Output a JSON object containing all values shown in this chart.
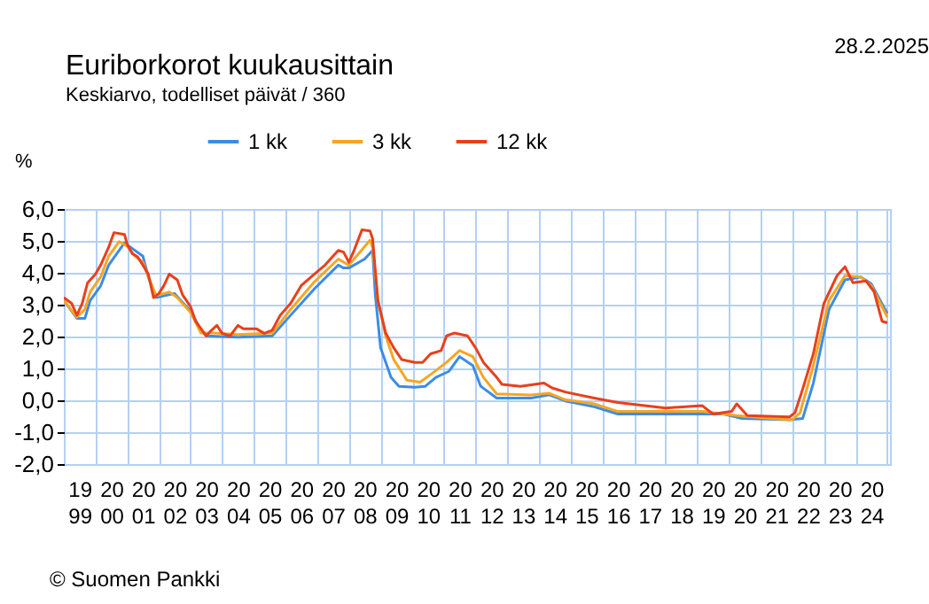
{
  "chart_data": {
    "type": "line",
    "title": "Euriborkorot kuukausittain",
    "subtitle": "Keskiarvo, todelliset päivät / 360",
    "ylabel": "%",
    "annotations": [
      "28.2.2025",
      "© Suomen Pankki"
    ],
    "xlim": [
      "1999-01",
      "2025-02"
    ],
    "xticks": [
      {
        "value": "1999-07",
        "label": "19\n99"
      },
      {
        "value": "2000-07",
        "label": "20\n00"
      },
      {
        "value": "2001-07",
        "label": "20\n01"
      },
      {
        "value": "2002-07",
        "label": "20\n02"
      },
      {
        "value": "2003-07",
        "label": "20\n03"
      },
      {
        "value": "2004-07",
        "label": "20\n04"
      },
      {
        "value": "2005-07",
        "label": "20\n05"
      },
      {
        "value": "2006-07",
        "label": "20\n06"
      },
      {
        "value": "2007-07",
        "label": "20\n07"
      },
      {
        "value": "2008-07",
        "label": "20\n08"
      },
      {
        "value": "2009-07",
        "label": "20\n09"
      },
      {
        "value": "2010-07",
        "label": "20\n10"
      },
      {
        "value": "2011-07",
        "label": "20\n11"
      },
      {
        "value": "2012-07",
        "label": "20\n12"
      },
      {
        "value": "2013-07",
        "label": "20\n13"
      },
      {
        "value": "2014-07",
        "label": "20\n14"
      },
      {
        "value": "2015-07",
        "label": "20\n15"
      },
      {
        "value": "2016-07",
        "label": "20\n16"
      },
      {
        "value": "2017-07",
        "label": "20\n17"
      },
      {
        "value": "2018-07",
        "label": "20\n18"
      },
      {
        "value": "2019-07",
        "label": "20\n19"
      },
      {
        "value": "2020-07",
        "label": "20\n20"
      },
      {
        "value": "2021-07",
        "label": "20\n21"
      },
      {
        "value": "2022-07",
        "label": "20\n22"
      },
      {
        "value": "2023-07",
        "label": "20\n23"
      },
      {
        "value": "2024-07",
        "label": "20\n24"
      },
      {
        "value": "2000-01",
        "label": null
      },
      {
        "value": "2001-01",
        "label": null
      },
      {
        "value": "2002-01",
        "label": null
      },
      {
        "value": "2003-01",
        "label": null
      },
      {
        "value": "2004-01",
        "label": null
      },
      {
        "value": "2005-01",
        "label": null
      },
      {
        "value": "2006-01",
        "label": null
      },
      {
        "value": "2007-01",
        "label": null
      },
      {
        "value": "2008-01",
        "label": null
      },
      {
        "value": "2009-01",
        "label": null
      },
      {
        "value": "2010-01",
        "label": null
      },
      {
        "value": "2011-01",
        "label": null
      },
      {
        "value": "2012-01",
        "label": null
      },
      {
        "value": "2013-01",
        "label": null
      },
      {
        "value": "2014-01",
        "label": null
      },
      {
        "value": "2015-01",
        "label": null
      },
      {
        "value": "2016-01",
        "label": null
      },
      {
        "value": "2017-01",
        "label": null
      },
      {
        "value": "2018-01",
        "label": null
      },
      {
        "value": "2019-01",
        "label": null
      },
      {
        "value": "2020-01",
        "label": null
      },
      {
        "value": "2021-01",
        "label": null
      },
      {
        "value": "2022-01",
        "label": null
      },
      {
        "value": "2023-01",
        "label": null
      },
      {
        "value": "2024-01",
        "label": null
      },
      {
        "value": "2025-01",
        "label": null
      }
    ],
    "ylim": [
      -2,
      6
    ],
    "yticks": [
      {
        "value": -2,
        "label": "-2,0"
      },
      {
        "value": -1,
        "label": "-1,0"
      },
      {
        "value": 0,
        "label": "0,0"
      },
      {
        "value": 1,
        "label": "1,0"
      },
      {
        "value": 2,
        "label": "2,0"
      },
      {
        "value": 3,
        "label": "3,0"
      },
      {
        "value": 4,
        "label": "4,0"
      },
      {
        "value": 5,
        "label": "5,0"
      },
      {
        "value": 6,
        "label": "6,0"
      }
    ],
    "grid": true,
    "legend": "top",
    "series": [
      {
        "name": "1 kk",
        "color": "#3c8ce6",
        "x": [
          "1999-01",
          "1999-06",
          "1999-09",
          "1999-11",
          "2000-03",
          "2000-06",
          "2000-12",
          "2001-03",
          "2001-07",
          "2001-09",
          "2001-12",
          "2002-07",
          "2003-01",
          "2003-05",
          "2003-07",
          "2004-07",
          "2005-08",
          "2006-03",
          "2006-12",
          "2007-09",
          "2007-11",
          "2008-01",
          "2008-07",
          "2008-10",
          "2008-11",
          "2009-01",
          "2009-05",
          "2009-08",
          "2010-02",
          "2010-06",
          "2010-10",
          "2011-03",
          "2011-07",
          "2011-12",
          "2012-03",
          "2012-09",
          "2013-10",
          "2014-05",
          "2014-11",
          "2015-10",
          "2016-07",
          "2019-11",
          "2020-06",
          "2021-12",
          "2022-05",
          "2022-09",
          "2023-03",
          "2023-09",
          "2024-03",
          "2024-07",
          "2025-01"
        ],
        "values": [
          3.13,
          2.57,
          2.57,
          3.13,
          3.59,
          4.24,
          4.94,
          4.76,
          4.52,
          3.87,
          3.22,
          3.35,
          2.8,
          2.2,
          2.02,
          1.98,
          2.02,
          2.67,
          3.5,
          4.24,
          4.15,
          4.15,
          4.43,
          4.7,
          3.31,
          1.65,
          0.72,
          0.44,
          0.41,
          0.44,
          0.72,
          0.91,
          1.37,
          1.09,
          0.44,
          0.07,
          0.07,
          0.17,
          -0.02,
          -0.2,
          -0.43,
          -0.43,
          -0.57,
          -0.61,
          -0.57,
          0.54,
          2.85,
          3.78,
          3.87,
          3.65,
          2.72
        ]
      },
      {
        "name": "3 kk",
        "color": "#f5a623",
        "x": [
          "1999-01",
          "1999-06",
          "1999-09",
          "1999-11",
          "2000-03",
          "2000-06",
          "2000-10",
          "2001-01",
          "2001-04",
          "2001-07",
          "2001-09",
          "2001-12",
          "2002-05",
          "2002-08",
          "2003-01",
          "2003-05",
          "2003-10",
          "2004-07",
          "2005-08",
          "2006-03",
          "2006-12",
          "2007-09",
          "2008-01",
          "2008-09",
          "2008-10",
          "2008-12",
          "2009-03",
          "2009-06",
          "2009-11",
          "2010-04",
          "2010-08",
          "2011-02",
          "2011-07",
          "2011-12",
          "2012-04",
          "2012-09",
          "2013-10",
          "2014-05",
          "2014-11",
          "2015-10",
          "2016-07",
          "2019-03",
          "2020-04",
          "2021-05",
          "2022-01",
          "2022-04",
          "2022-09",
          "2023-03",
          "2023-09",
          "2024-03",
          "2024-07",
          "2025-01"
        ],
        "values": [
          3.13,
          2.61,
          2.85,
          3.4,
          3.87,
          4.52,
          4.98,
          4.83,
          4.52,
          4.33,
          3.87,
          3.28,
          3.4,
          3.22,
          2.76,
          2.11,
          2.11,
          2.06,
          2.11,
          2.85,
          3.72,
          4.43,
          4.24,
          5.02,
          4.8,
          3.13,
          2.02,
          1.28,
          0.63,
          0.57,
          0.81,
          1.19,
          1.56,
          1.37,
          0.72,
          0.2,
          0.17,
          0.22,
          0.02,
          -0.11,
          -0.35,
          -0.35,
          -0.48,
          -0.57,
          -0.61,
          -0.39,
          1.09,
          3.13,
          3.91,
          3.87,
          3.59,
          2.61
        ]
      },
      {
        "name": "12 kk",
        "color": "#e8401c",
        "x": [
          "1999-01",
          "1999-04",
          "1999-06",
          "1999-08",
          "1999-10",
          "2000-01",
          "2000-03",
          "2000-06",
          "2000-08",
          "2000-12",
          "2001-01",
          "2001-03",
          "2001-05",
          "2001-07",
          "2001-09",
          "2001-11",
          "2002-01",
          "2002-03",
          "2002-05",
          "2002-08",
          "2002-10",
          "2003-01",
          "2003-03",
          "2003-07",
          "2003-09",
          "2003-11",
          "2004-01",
          "2004-04",
          "2004-07",
          "2004-09",
          "2005-02",
          "2005-05",
          "2005-08",
          "2005-11",
          "2006-03",
          "2006-07",
          "2006-12",
          "2007-04",
          "2007-09",
          "2007-11",
          "2008-01",
          "2008-03",
          "2008-06",
          "2008-09",
          "2008-10",
          "2008-12",
          "2009-03",
          "2009-06",
          "2009-09",
          "2010-02",
          "2010-05",
          "2010-08",
          "2010-12",
          "2011-02",
          "2011-05",
          "2011-10",
          "2012-01",
          "2012-04",
          "2012-09",
          "2012-11",
          "2013-06",
          "2014-03",
          "2014-06",
          "2014-11",
          "2015-10",
          "2016-07",
          "2018-01",
          "2019-03",
          "2019-07",
          "2020-02",
          "2020-04",
          "2020-08",
          "2021-12",
          "2022-02",
          "2022-05",
          "2022-09",
          "2023-01",
          "2023-06",
          "2023-09",
          "2023-12",
          "2024-05",
          "2024-08",
          "2024-11",
          "2025-01"
        ],
        "values": [
          3.22,
          3.04,
          2.67,
          3.04,
          3.68,
          3.96,
          4.24,
          4.8,
          5.26,
          5.2,
          4.89,
          4.6,
          4.5,
          4.24,
          3.96,
          3.22,
          3.35,
          3.6,
          3.96,
          3.78,
          3.31,
          2.94,
          2.48,
          2.02,
          2.2,
          2.35,
          2.1,
          2.02,
          2.35,
          2.24,
          2.24,
          2.1,
          2.2,
          2.67,
          3.04,
          3.6,
          3.96,
          4.24,
          4.7,
          4.65,
          4.33,
          4.7,
          5.35,
          5.31,
          5.07,
          3.13,
          2.11,
          1.65,
          1.28,
          1.19,
          1.19,
          1.46,
          1.56,
          2.02,
          2.11,
          2.02,
          1.65,
          1.19,
          0.72,
          0.5,
          0.44,
          0.54,
          0.39,
          0.26,
          0.07,
          -0.07,
          -0.24,
          -0.17,
          -0.43,
          -0.35,
          -0.11,
          -0.48,
          -0.52,
          -0.39,
          0.35,
          1.46,
          3.04,
          3.91,
          4.19,
          3.69,
          3.74,
          3.41,
          2.48,
          2.43
        ]
      }
    ]
  }
}
